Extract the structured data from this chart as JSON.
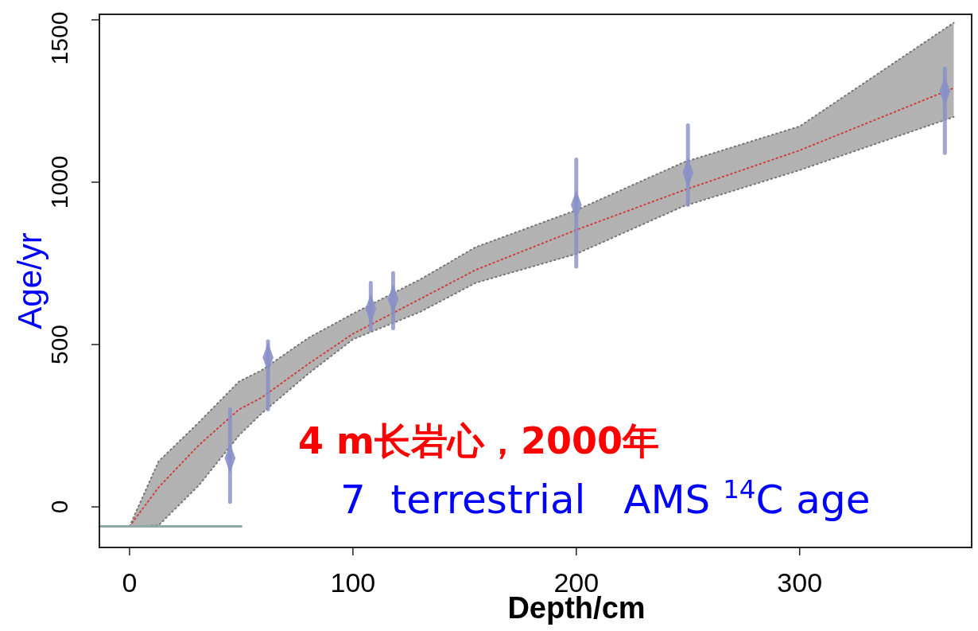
{
  "chart_data": {
    "type": "line",
    "xlabel": "Depth/cm",
    "ylabel": "Age/yr",
    "xlim": [
      -13.5,
      377
    ],
    "xticks": [
      0,
      100,
      200,
      300
    ],
    "ylim": [
      -125,
      1517
    ],
    "yticks": [
      0,
      500,
      1000,
      1500
    ],
    "grid": false,
    "series": [
      {
        "color": "#d04040",
        "line_style": "dotted",
        "x": [
          0,
          13,
          31,
          49,
          59,
          80,
          100,
          130,
          155,
          200,
          248,
          300,
          369
        ],
        "values": [
          -60,
          60,
          190,
          300,
          336,
          440,
          533,
          640,
          730,
          853,
          975,
          1098,
          1290
        ],
        "lower": [
          -60,
          -57,
          66,
          220,
          287,
          410,
          516,
          600,
          690,
          779,
          926,
          1037,
          1201
        ],
        "upper": [
          -60,
          140,
          260,
          386,
          420,
          520,
          595,
          700,
          800,
          914,
          1061,
          1172,
          1491
        ]
      },
      {
        "type": "line",
        "color": "#777777",
        "line_style": "dotted",
        "x": [
          0,
          13,
          31,
          49,
          59,
          80,
          100,
          130,
          155,
          200,
          248,
          300,
          369
        ],
        "values": [
          -60,
          -57,
          66,
          220,
          287,
          410,
          516,
          600,
          690,
          779,
          926,
          1037,
          1201
        ]
      },
      {
        "type": "line",
        "color": "#777777",
        "line_style": "dotted",
        "x": [
          0,
          13,
          31,
          49,
          59,
          80,
          100,
          130,
          155,
          200,
          248,
          300,
          369
        ],
        "values": [
          -60,
          140,
          260,
          386,
          420,
          520,
          595,
          700,
          800,
          914,
          1061,
          1172,
          1491
        ]
      },
      {
        "type": "scatter",
        "color": "#8890c8",
        "marker": "diamond",
        "x": [
          45,
          62,
          108,
          118,
          200,
          250,
          365
        ],
        "values": [
          150,
          460,
          610,
          640,
          930,
          1030,
          1280
        ],
        "errors": [
          [
            15,
            300
          ],
          [
            300,
            510
          ],
          [
            545,
            690
          ],
          [
            550,
            720
          ],
          [
            740,
            1070
          ],
          [
            930,
            1175
          ],
          [
            1090,
            1350
          ]
        ]
      },
      {
        "type": "line",
        "color": "#90a8a8",
        "line_style": "solid",
        "x": [
          -13.5,
          50
        ],
        "values": [
          -60,
          -60
        ]
      }
    ],
    "annotations": [
      "4 m长岩心，2000年",
      "7  terrestrial   AMS $^{14}$C age"
    ]
  }
}
